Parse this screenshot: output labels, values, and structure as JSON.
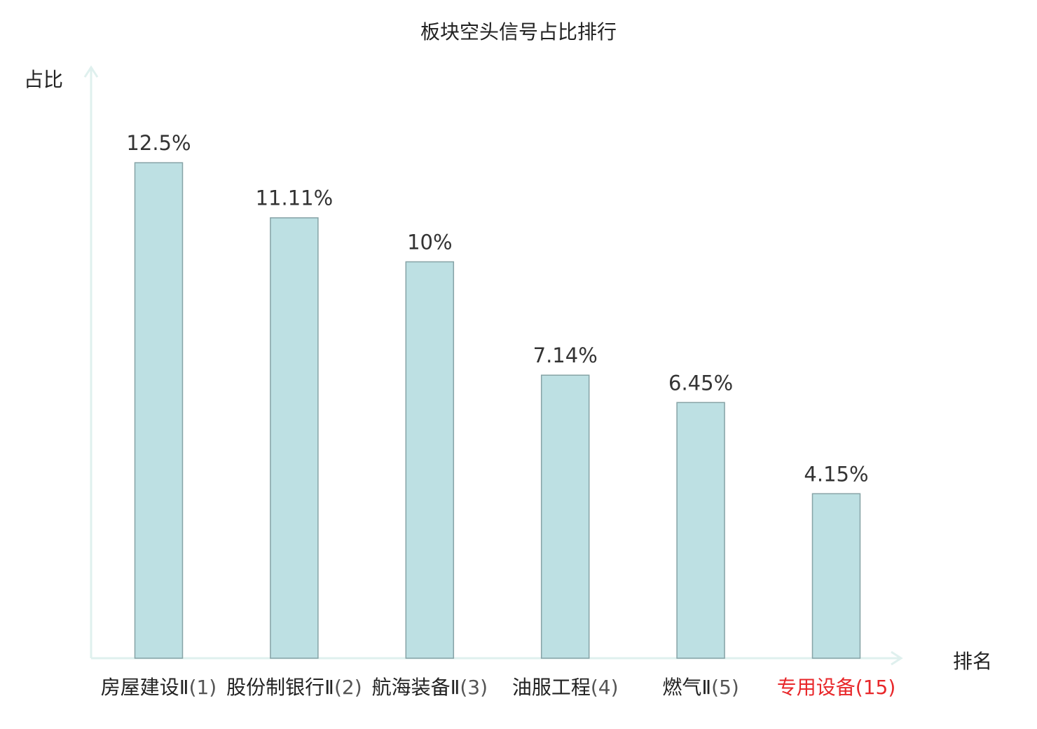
{
  "chart_data": {
    "type": "bar",
    "title": "板块空头信号占比排行",
    "ylabel": "占比",
    "xlabel": "排名",
    "ylim": [
      0,
      15
    ],
    "grid": false,
    "categories": [
      {
        "name": "房屋建设Ⅱ",
        "rank": "(1)",
        "highlight": false
      },
      {
        "name": "股份制银行Ⅱ",
        "rank": "(2)",
        "highlight": false
      },
      {
        "name": "航海装备Ⅱ",
        "rank": "(3)",
        "highlight": false
      },
      {
        "name": "油服工程",
        "rank": "(4)",
        "highlight": false
      },
      {
        "name": "燃气Ⅱ",
        "rank": "(5)",
        "highlight": false
      },
      {
        "name": "专用设备",
        "rank": "(15)",
        "highlight": true
      }
    ],
    "values": [
      12.5,
      11.11,
      10,
      7.14,
      6.45,
      4.15
    ],
    "labels": [
      "12.5%",
      "11.11%",
      "10%",
      "7.14%",
      "6.45%",
      "4.15%"
    ],
    "colors": {
      "bar_fill": "#bde0e3",
      "bar_stroke": "#86a3a6",
      "axis": "#dff0ee",
      "highlight_text": "#e8272a"
    }
  }
}
